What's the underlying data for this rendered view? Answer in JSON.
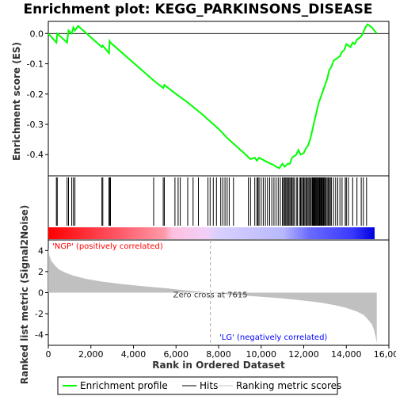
{
  "chart_data": {
    "type": "line",
    "title": "Enrichment plot: KEGG_PARKINSONS_DISEASE",
    "xlabel": "Rank in Ordered Dataset",
    "top_ylabel": "Enrichment score (ES)",
    "bottom_ylabel": "Ranked list metric (Signal2Noise)",
    "xlim": [
      0,
      16000
    ],
    "x_ticks": [
      0,
      2000,
      4000,
      6000,
      8000,
      10000,
      12000,
      14000,
      16000
    ],
    "x_tick_labels": [
      "0",
      "2,000",
      "4,000",
      "6,000",
      "8,000",
      "10,000",
      "12,000",
      "14,000",
      "16,000"
    ],
    "es_ylim": [
      -0.47,
      0.04
    ],
    "es_ticks": [
      0.0,
      -0.1,
      -0.2,
      -0.3,
      -0.4
    ],
    "es_tick_labels": [
      "0.0",
      "-0.1",
      "-0.2",
      "-0.3",
      "-0.4"
    ],
    "metric_ylim": [
      -5,
      5
    ],
    "metric_ticks": [
      4,
      2,
      0,
      -2,
      -4
    ],
    "metric_tick_labels": [
      "4",
      "2",
      "0",
      "-2",
      "-4"
    ],
    "grid": false,
    "legend_position": "bottom",
    "series": [
      {
        "name": "Enrichment profile",
        "color": "#00ff00",
        "x": [
          0,
          380,
          420,
          880,
          950,
          1100,
          1180,
          1250,
          1400,
          2520,
          2560,
          2850,
          2880,
          2920,
          4950,
          5400,
          5450,
          6100,
          6200,
          6500,
          7200,
          7600,
          8000,
          8400,
          8800,
          9350,
          9500,
          9700,
          9800,
          9900,
          10300,
          10600,
          10700,
          10850,
          11000,
          11100,
          11250,
          11350,
          11450,
          11650,
          11750,
          11850,
          12000,
          12100,
          12200,
          12300,
          12400,
          12500,
          12600,
          12700,
          12800,
          12900,
          13000,
          13100,
          13200,
          13300,
          13400,
          13500,
          13600,
          13700,
          13800,
          13900,
          14000,
          14100,
          14200,
          14300,
          14400,
          14500,
          14600,
          14700,
          14800,
          14900,
          15000,
          15200,
          15430
        ],
        "y": [
          0.0,
          -0.03,
          0.0,
          -0.03,
          0.01,
          0.0,
          0.02,
          0.01,
          0.025,
          -0.045,
          -0.04,
          -0.065,
          -0.025,
          -0.03,
          -0.155,
          -0.18,
          -0.17,
          -0.205,
          -0.21,
          -0.225,
          -0.265,
          -0.29,
          -0.315,
          -0.345,
          -0.37,
          -0.405,
          -0.415,
          -0.41,
          -0.42,
          -0.41,
          -0.425,
          -0.435,
          -0.44,
          -0.445,
          -0.43,
          -0.44,
          -0.43,
          -0.43,
          -0.41,
          -0.4,
          -0.385,
          -0.4,
          -0.395,
          -0.38,
          -0.37,
          -0.35,
          -0.32,
          -0.29,
          -0.26,
          -0.23,
          -0.21,
          -0.19,
          -0.17,
          -0.15,
          -0.12,
          -0.11,
          -0.09,
          -0.085,
          -0.08,
          -0.075,
          -0.06,
          -0.055,
          -0.035,
          -0.04,
          -0.045,
          -0.03,
          -0.035,
          -0.02,
          -0.015,
          -0.01,
          0.005,
          0.02,
          0.03,
          0.02,
          0.0
        ]
      },
      {
        "name": "Hits",
        "color": "#000000",
        "x": [
          380,
          420,
          880,
          950,
          1100,
          1180,
          1250,
          2520,
          2560,
          2850,
          2880,
          2920,
          4950,
          5400,
          5450,
          5950,
          6100,
          6200,
          6550,
          6800,
          7050,
          7500,
          7600,
          7750,
          7900,
          8100,
          8200,
          8300,
          8400,
          8500,
          8700,
          9400,
          9500,
          9700,
          9800,
          9850,
          9900,
          10000,
          10100,
          10200,
          10300,
          10400,
          10500,
          10600,
          10700,
          10800,
          10900,
          11000,
          11050,
          11100,
          11150,
          11200,
          11250,
          11300,
          11350,
          11400,
          11450,
          11500,
          11550,
          11650,
          11700,
          11800,
          11850,
          11900,
          11950,
          12000,
          12050,
          12100,
          12150,
          12200,
          12250,
          12300,
          12350,
          12400,
          12420,
          12450,
          12480,
          12500,
          12530,
          12560,
          12600,
          12630,
          12660,
          12700,
          12730,
          12760,
          12800,
          12830,
          12860,
          12900,
          12930,
          12960,
          13000,
          13050,
          13100,
          13150,
          13200,
          13250,
          13300,
          13400,
          13500,
          13600,
          13700,
          13800,
          13950,
          14000,
          14100,
          14300,
          14500,
          14700,
          14800,
          14950
        ]
      },
      {
        "name": "Ranking metric scores",
        "color": "#c0c0c0",
        "x": [
          0,
          50,
          150,
          300,
          500,
          800,
          1200,
          1800,
          2500,
          3500,
          4500,
          5500,
          6500,
          7200,
          7615,
          8000,
          9000,
          10000,
          11000,
          12000,
          12800,
          13500,
          14000,
          14500,
          14800,
          15000,
          15200,
          15300,
          15380,
          15430
        ],
        "y": [
          4.2,
          3.5,
          3.0,
          2.6,
          2.2,
          1.9,
          1.6,
          1.3,
          1.05,
          0.8,
          0.6,
          0.42,
          0.2,
          0.07,
          0.0,
          -0.08,
          -0.25,
          -0.4,
          -0.55,
          -0.75,
          -0.95,
          -1.2,
          -1.45,
          -1.8,
          -2.1,
          -2.5,
          -3.0,
          -3.5,
          -4.2,
          -4.8
        ]
      }
    ],
    "annotations": {
      "positive_label": "'NGP' (positively correlated)",
      "negative_label": "'LG' (negatively correlated)",
      "zero_cross_label": "Zero cross at 7615",
      "zero_cross_x": 7615
    },
    "colors": {
      "profile": "#00ff00",
      "positive": "#ff0000",
      "negative": "#0000ff",
      "positive_text": "#ff0000",
      "negative_text": "#0000ff",
      "metric_fill": "#c0c0c0"
    }
  }
}
